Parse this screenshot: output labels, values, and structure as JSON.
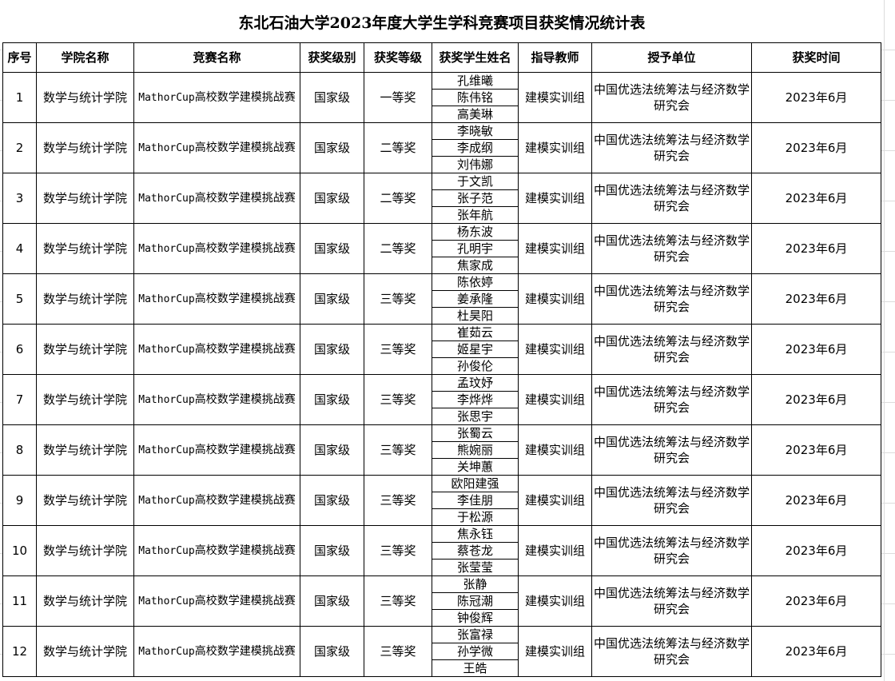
{
  "title": "东北石油大学2023年度大学生学科竞赛项目获奖情况统计表",
  "headers": [
    "序号",
    "学院名称",
    "竞赛名称",
    "获奖级别",
    "获奖等级",
    "获奖学生姓名",
    "指导教师",
    "授予单位",
    "获奖时间"
  ],
  "rows": [
    {
      "no": "1",
      "college": "数学与统计学院",
      "comp_prefix": "MathorCup",
      "comp": "高校数学建模挑战赛",
      "level": "国家级",
      "grade": "一等奖",
      "students": [
        "孔维曦",
        "陈伟铭",
        "高美琳"
      ],
      "teacher": "建模实训组",
      "org": "中国优选法统筹法与经济数学研究会",
      "time": "2023年6月"
    },
    {
      "no": "2",
      "college": "数学与统计学院",
      "comp_prefix": "MathorCup",
      "comp": "高校数学建模挑战赛",
      "level": "国家级",
      "grade": "二等奖",
      "students": [
        "李晓敏",
        "李成纲",
        "刘伟娜"
      ],
      "teacher": "建模实训组",
      "org": "中国优选法统筹法与经济数学研究会",
      "time": "2023年6月"
    },
    {
      "no": "3",
      "college": "数学与统计学院",
      "comp_prefix": "MathorCup",
      "comp": "高校数学建模挑战赛",
      "level": "国家级",
      "grade": "二等奖",
      "students": [
        "于文凯",
        "张子范",
        "张年航"
      ],
      "teacher": "建模实训组",
      "org": "中国优选法统筹法与经济数学研究会",
      "time": "2023年6月"
    },
    {
      "no": "4",
      "college": "数学与统计学院",
      "comp_prefix": "MathorCup",
      "comp": "高校数学建模挑战赛",
      "level": "国家级",
      "grade": "二等奖",
      "students": [
        "杨东波",
        "孔明宇",
        "焦家成"
      ],
      "teacher": "建模实训组",
      "org": "中国优选法统筹法与经济数学研究会",
      "time": "2023年6月"
    },
    {
      "no": "5",
      "college": "数学与统计学院",
      "comp_prefix": "MathorCup",
      "comp": "高校数学建模挑战赛",
      "level": "国家级",
      "grade": "三等奖",
      "students": [
        "陈依婷",
        "姜承隆",
        "杜昊阳"
      ],
      "teacher": "建模实训组",
      "org": "中国优选法统筹法与经济数学研究会",
      "time": "2023年6月"
    },
    {
      "no": "6",
      "college": "数学与统计学院",
      "comp_prefix": "MathorCup",
      "comp": "高校数学建模挑战赛",
      "level": "国家级",
      "grade": "三等奖",
      "students": [
        "崔茹云",
        "姬星宇",
        "孙俊伦"
      ],
      "teacher": "建模实训组",
      "org": "中国优选法统筹法与经济数学研究会",
      "time": "2023年6月"
    },
    {
      "no": "7",
      "college": "数学与统计学院",
      "comp_prefix": "MathorCup",
      "comp": "高校数学建模挑战赛",
      "level": "国家级",
      "grade": "三等奖",
      "students": [
        "孟玟妤",
        "李烨烨",
        "张思宇"
      ],
      "teacher": "建模实训组",
      "org": "中国优选法统筹法与经济数学研究会",
      "time": "2023年6月"
    },
    {
      "no": "8",
      "college": "数学与统计学院",
      "comp_prefix": "MathorCup",
      "comp": "高校数学建模挑战赛",
      "level": "国家级",
      "grade": "三等奖",
      "students": [
        "张蜀云",
        "熊婉丽",
        "关坤蕙"
      ],
      "teacher": "建模实训组",
      "org": "中国优选法统筹法与经济数学研究会",
      "time": "2023年6月"
    },
    {
      "no": "9",
      "college": "数学与统计学院",
      "comp_prefix": "MathorCup",
      "comp": "高校数学建模挑战赛",
      "level": "国家级",
      "grade": "三等奖",
      "students": [
        "欧阳建强",
        "李佳朋",
        "于松源"
      ],
      "teacher": "建模实训组",
      "org": "中国优选法统筹法与经济数学研究会",
      "time": "2023年6月"
    },
    {
      "no": "10",
      "college": "数学与统计学院",
      "comp_prefix": "MathorCup",
      "comp": "高校数学建模挑战赛",
      "level": "国家级",
      "grade": "三等奖",
      "students": [
        "焦永钰",
        "蔡苍龙",
        "张莹莹"
      ],
      "teacher": "建模实训组",
      "org": "中国优选法统筹法与经济数学研究会",
      "time": "2023年6月"
    },
    {
      "no": "11",
      "college": "数学与统计学院",
      "comp_prefix": "MathorCup",
      "comp": "高校数学建模挑战赛",
      "level": "国家级",
      "grade": "三等奖",
      "students": [
        "张静",
        "陈冠潮",
        "钟俊辉"
      ],
      "teacher": "建模实训组",
      "org": "中国优选法统筹法与经济数学研究会",
      "time": "2023年6月"
    },
    {
      "no": "12",
      "college": "数学与统计学院",
      "comp_prefix": "MathorCup",
      "comp": "高校数学建模挑战赛",
      "level": "国家级",
      "grade": "三等奖",
      "students": [
        "张富禄",
        "孙学微",
        "王皓"
      ],
      "teacher": "建模实训组",
      "org": "中国优选法统筹法与经济数学研究会",
      "time": "2023年6月"
    }
  ]
}
